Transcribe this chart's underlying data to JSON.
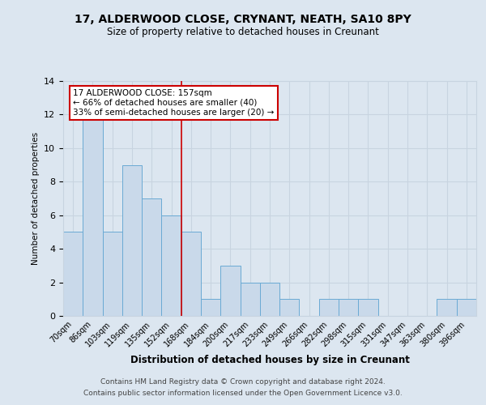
{
  "title": "17, ALDERWOOD CLOSE, CRYNANT, NEATH, SA10 8PY",
  "subtitle": "Size of property relative to detached houses in Creunant",
  "xlabel": "Distribution of detached houses by size in Creunant",
  "ylabel": "Number of detached properties",
  "bar_labels": [
    "70sqm",
    "86sqm",
    "103sqm",
    "119sqm",
    "135sqm",
    "152sqm",
    "168sqm",
    "184sqm",
    "200sqm",
    "217sqm",
    "233sqm",
    "249sqm",
    "266sqm",
    "282sqm",
    "298sqm",
    "315sqm",
    "331sqm",
    "347sqm",
    "363sqm",
    "380sqm",
    "396sqm"
  ],
  "bar_values": [
    5,
    12,
    5,
    9,
    7,
    6,
    5,
    1,
    3,
    2,
    2,
    1,
    0,
    1,
    1,
    1,
    0,
    0,
    0,
    1,
    1
  ],
  "bar_color": "#c9d9ea",
  "bar_edge_color": "#6aaad4",
  "property_line_x": 5.5,
  "property_line_color": "#cc0000",
  "annotation_text": "17 ALDERWOOD CLOSE: 157sqm\n← 66% of detached houses are smaller (40)\n33% of semi-detached houses are larger (20) →",
  "annotation_box_color": "#ffffff",
  "annotation_box_edge": "#cc0000",
  "ylim": [
    0,
    14
  ],
  "yticks": [
    0,
    2,
    4,
    6,
    8,
    10,
    12,
    14
  ],
  "grid_color": "#c8d4e0",
  "background_color": "#dce6f0",
  "footer1": "Contains HM Land Registry data © Crown copyright and database right 2024.",
  "footer2": "Contains public sector information licensed under the Open Government Licence v3.0."
}
